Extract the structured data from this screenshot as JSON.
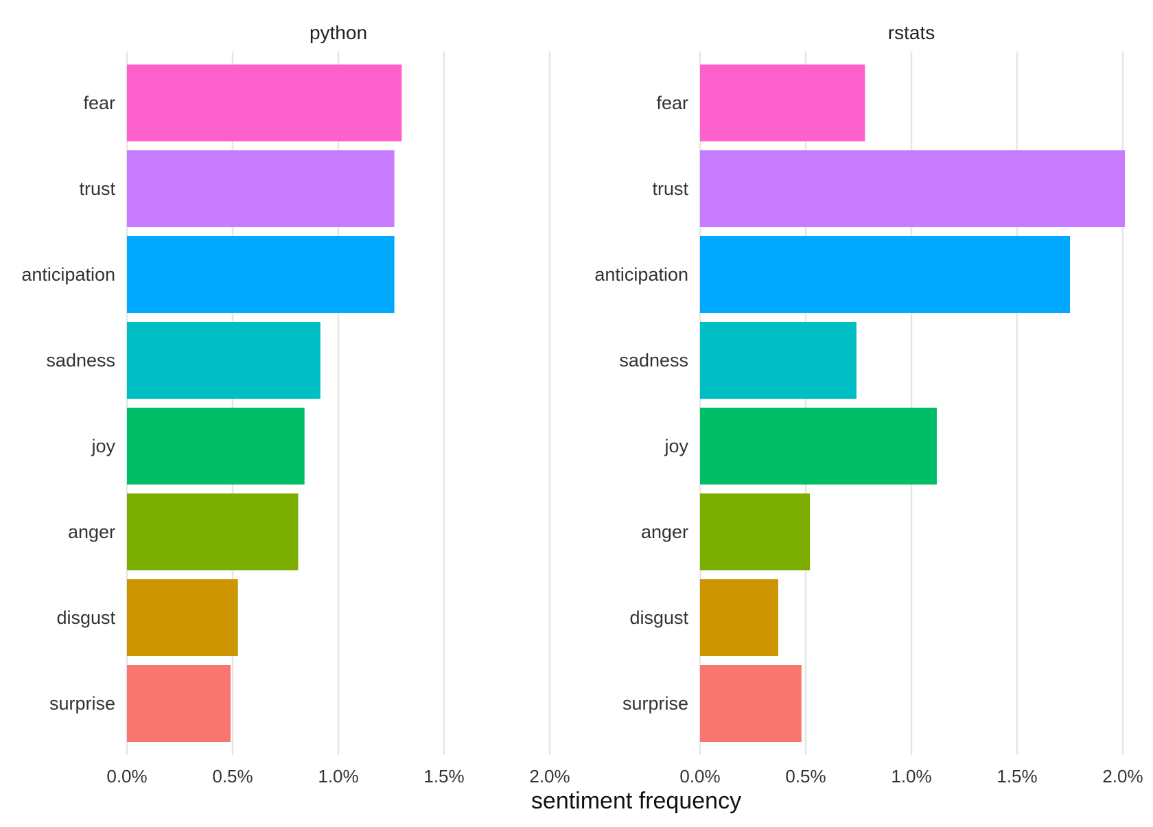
{
  "chart_data": {
    "type": "bar",
    "orientation": "horizontal",
    "facet": true,
    "xlabel": "sentiment frequency",
    "ylabel": "",
    "xlim": [
      0,
      0.02
    ],
    "tick_values": [
      0,
      0.005,
      0.01,
      0.015,
      0.02
    ],
    "tick_labels": [
      "0.0%",
      "0.5%",
      "1.0%",
      "1.5%",
      "2.0%"
    ],
    "grid": "vertical",
    "legend": "none",
    "categories": [
      "fear",
      "trust",
      "anticipation",
      "sadness",
      "joy",
      "anger",
      "disgust",
      "surprise"
    ],
    "colors": {
      "fear": "#FF61CC",
      "trust": "#C77CFF",
      "anticipation": "#00A9FF",
      "sadness": "#00BFC4",
      "joy": "#00BE67",
      "anger": "#7CAE00",
      "disgust": "#CD9600",
      "surprise": "#F8766D"
    },
    "panels": [
      {
        "title": "python",
        "values": [
          0.013,
          0.01265,
          0.01265,
          0.00915,
          0.0084,
          0.0081,
          0.00525,
          0.0049
        ]
      },
      {
        "title": "rstats",
        "values": [
          0.0078,
          0.0201,
          0.0175,
          0.0074,
          0.0112,
          0.0052,
          0.0037,
          0.0048
        ]
      }
    ]
  }
}
